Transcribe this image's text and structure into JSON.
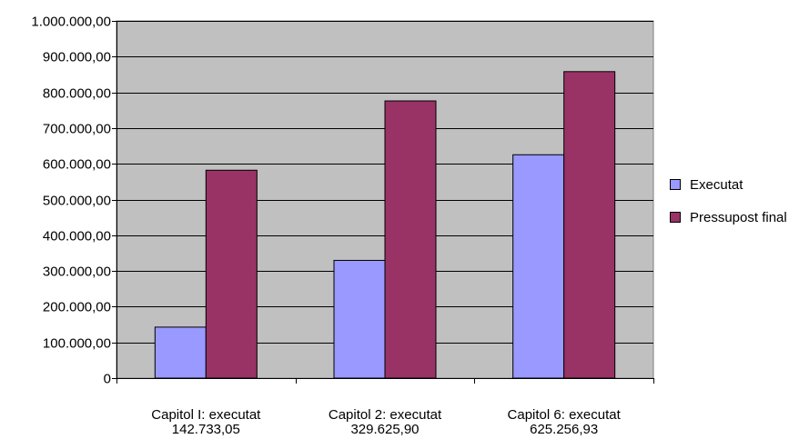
{
  "chart_data": {
    "type": "bar",
    "categories": [
      [
        "Capitol I: executat",
        "142.733,05"
      ],
      [
        "Capitol 2: executat",
        "329.625,90"
      ],
      [
        "Capitol 6: executat",
        "625.256,93"
      ]
    ],
    "series": [
      {
        "name": "Executat",
        "values": [
          142733.05,
          329625.9,
          625256.93
        ],
        "color": "#9999FF"
      },
      {
        "name": "Pressupost final",
        "values": [
          582000,
          776000,
          858000
        ],
        "color": "#993366"
      }
    ],
    "yticks": [
      "0",
      "100.000,00",
      "200.000,00",
      "300.000,00",
      "400.000,00",
      "500.000,00",
      "600.000,00",
      "700.000,00",
      "800.000,00",
      "900.000,00",
      "1.000.000,00"
    ],
    "ylim": [
      0,
      1000000
    ],
    "grid": true,
    "plot_background": "#C0C0C0",
    "legend_position": "right"
  }
}
